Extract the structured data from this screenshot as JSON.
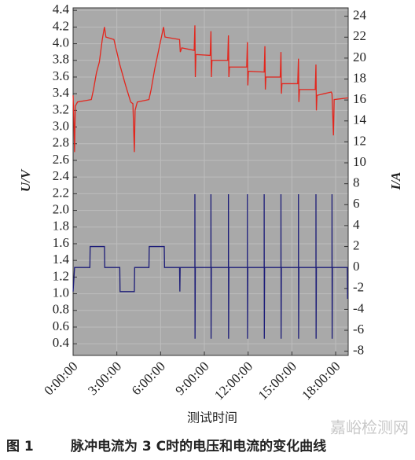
{
  "chart_data": {
    "type": "line",
    "y_label": "U/V",
    "y2_label": "I/A",
    "x_label": "测试时间",
    "figure_label": "图 1",
    "caption": "脉冲电流为 3 C时的电压和电流的变化曲线",
    "watermark": "嘉峪检测网",
    "grid": true,
    "xlim": [
      0,
      18.86
    ],
    "xticks": [
      {
        "value": 0,
        "label": "0:00:00"
      },
      {
        "value": 3,
        "label": "3:00:00"
      },
      {
        "value": 6,
        "label": "6:00:00"
      },
      {
        "value": 9,
        "label": "9:00:00"
      },
      {
        "value": 12,
        "label": "12:00:00"
      },
      {
        "value": 15,
        "label": "15:00:00"
      },
      {
        "value": 18,
        "label": "18:00:00"
      }
    ],
    "ylim": [
      0.26,
      4.43
    ],
    "yticks": [
      0.4,
      0.6,
      0.8,
      {
        "value": 1.0,
        "label": "1.0"
      },
      1.2,
      1.4,
      1.6,
      1.8,
      {
        "value": 2.0,
        "label": "2.0"
      },
      2.2,
      2.4,
      2.6,
      2.8,
      {
        "value": 3.0,
        "label": "3.0"
      },
      3.2,
      3.4,
      3.6,
      3.8,
      {
        "value": 4.0,
        "label": "4.0"
      },
      4.2,
      4.4
    ],
    "y2lim": [
      -8.4,
      24.8
    ],
    "y2ticks": [
      -8,
      -6,
      -4,
      -2,
      0,
      2,
      4,
      6,
      8,
      10,
      12,
      14,
      16,
      18,
      20,
      22,
      24
    ],
    "series": [
      {
        "color": "#e3261d",
        "axis": "y",
        "x": [
          0,
          0.05,
          0.1,
          0.15,
          0.3,
          1.25,
          1.4,
          1.6,
          1.8,
          2.0,
          2.15,
          2.25,
          2.8,
          3.2,
          3.6,
          3.95,
          4.1,
          4.2,
          4.25,
          4.4,
          5.2,
          5.35,
          5.6,
          5.9,
          6.2,
          6.3,
          7.3,
          7.35,
          7.45,
          8.3,
          8.35,
          8.38,
          8.42,
          9.4,
          9.45,
          9.48,
          9.52,
          10.6,
          10.65,
          10.68,
          10.72,
          11.9,
          11.95,
          11.98,
          12.02,
          13.1,
          13.15,
          13.18,
          13.22,
          14.2,
          14.25,
          14.28,
          14.32,
          15.4,
          15.45,
          15.48,
          15.52,
          16.6,
          16.65,
          16.68,
          16.72,
          17.7,
          17.75,
          17.85,
          17.9,
          18.86
        ],
        "values": [
          3.38,
          3.1,
          2.7,
          3.25,
          3.3,
          3.33,
          3.45,
          3.65,
          3.78,
          4.05,
          4.2,
          4.08,
          4.05,
          3.75,
          3.5,
          3.3,
          3.28,
          2.7,
          3.2,
          3.3,
          3.33,
          3.45,
          3.7,
          3.95,
          4.2,
          4.08,
          4.05,
          3.9,
          3.95,
          3.92,
          4.22,
          3.6,
          3.87,
          3.86,
          4.15,
          3.6,
          3.8,
          3.8,
          4.1,
          3.6,
          3.72,
          3.72,
          4.02,
          3.5,
          3.67,
          3.66,
          3.97,
          3.45,
          3.6,
          3.6,
          3.9,
          3.4,
          3.52,
          3.52,
          3.82,
          3.3,
          3.45,
          3.45,
          3.75,
          3.2,
          3.38,
          3.42,
          3.4,
          2.9,
          3.33,
          3.35
        ]
      },
      {
        "color": "#1c1c78",
        "axis": "y2",
        "x": [
          0,
          0.1,
          1.15,
          1.17,
          2.15,
          2.17,
          3.2,
          3.22,
          4.2,
          4.22,
          5.2,
          5.22,
          6.25,
          6.27,
          7.3,
          7.32,
          7.34,
          8.35,
          8.35,
          8.36,
          8.38,
          9.45,
          9.45,
          9.46,
          9.48,
          10.65,
          10.65,
          10.66,
          10.68,
          11.95,
          11.95,
          11.96,
          11.98,
          13.1,
          13.1,
          13.11,
          13.13,
          14.25,
          14.25,
          14.26,
          14.28,
          15.45,
          15.45,
          15.46,
          15.48,
          16.65,
          16.65,
          16.66,
          16.68,
          17.75,
          17.75,
          17.76,
          17.78,
          18.8,
          18.82
        ],
        "values": [
          -2.3,
          0,
          0,
          2,
          2,
          0,
          0,
          -2.3,
          -2.3,
          0,
          0,
          2,
          2,
          0,
          0,
          -2.3,
          0,
          0,
          7,
          -6.8,
          0,
          0,
          7,
          -6.8,
          0,
          0,
          7,
          -6.8,
          0,
          0,
          7,
          -6.8,
          0,
          0,
          7,
          -6.8,
          0,
          0,
          7,
          -6.8,
          0,
          0,
          7,
          -6.8,
          0,
          0,
          7,
          -6.8,
          0,
          0,
          7,
          -6.8,
          0,
          0,
          -3
        ]
      }
    ]
  }
}
